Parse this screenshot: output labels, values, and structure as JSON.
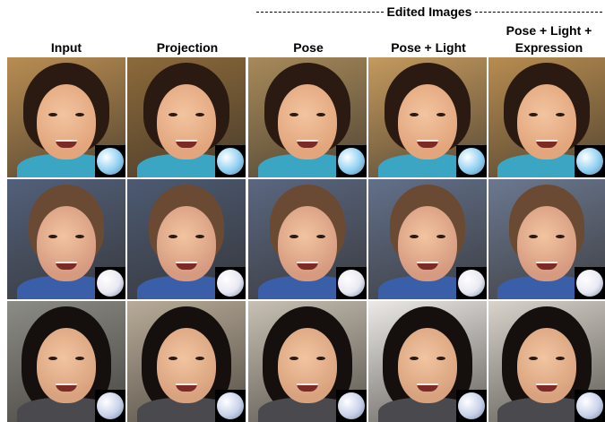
{
  "header": {
    "group_label": "Edited Images"
  },
  "columns": [
    "Input",
    "Projection",
    "Pose",
    "Pose + Light",
    "Pose + Light + Expression"
  ]
}
